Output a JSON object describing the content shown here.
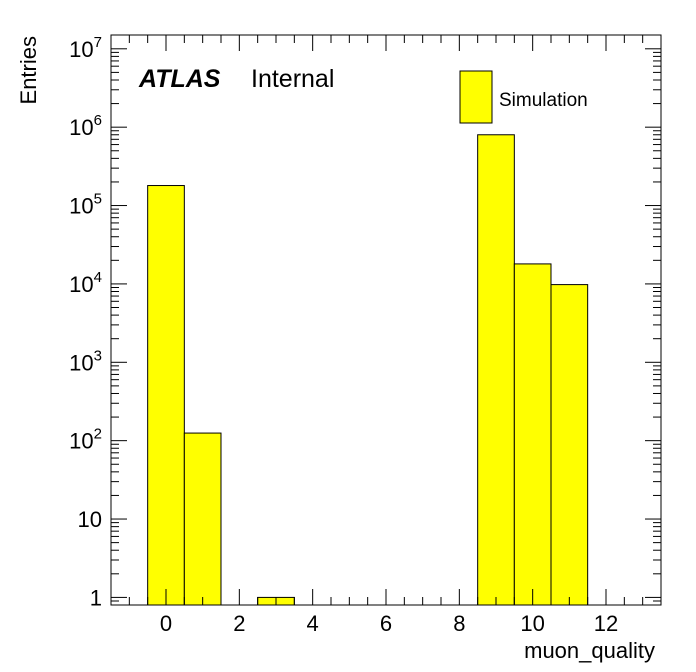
{
  "chart_data": {
    "type": "bar",
    "histogram": true,
    "yscale": "log",
    "xlabel": "muon_quality",
    "ylabel": "Entries",
    "xlim": [
      -1.5,
      13.5
    ],
    "ylim": [
      0.8,
      15000000
    ],
    "x_ticks": [
      "0",
      "2",
      "4",
      "6",
      "8",
      "10",
      "12"
    ],
    "y_ticks": [
      {
        "base": "1",
        "exp": ""
      },
      {
        "base": "10",
        "exp": ""
      },
      {
        "base": "10",
        "exp": "2"
      },
      {
        "base": "10",
        "exp": "3"
      },
      {
        "base": "10",
        "exp": "4"
      },
      {
        "base": "10",
        "exp": "5"
      },
      {
        "base": "10",
        "exp": "6"
      },
      {
        "base": "10",
        "exp": "7"
      }
    ],
    "bins": [
      {
        "low": -0.5,
        "high": 0.5,
        "value": 180000
      },
      {
        "low": 0.5,
        "high": 1.5,
        "value": 125
      },
      {
        "low": 2.5,
        "high": 3.5,
        "value": 1
      },
      {
        "low": 8.5,
        "high": 9.5,
        "value": 800000
      },
      {
        "low": 9.5,
        "high": 10.5,
        "value": 18000
      },
      {
        "low": 10.5,
        "high": 11.5,
        "value": 9800
      }
    ],
    "fill_color": "#ffff00",
    "legend": {
      "entries": [
        "Simulation"
      ],
      "placement": "top-right"
    },
    "label": {
      "experiment": "ATLAS",
      "status": "Internal"
    }
  }
}
